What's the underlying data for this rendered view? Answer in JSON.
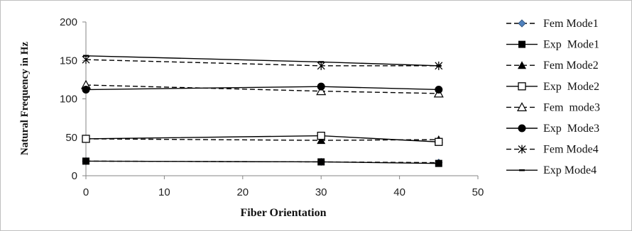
{
  "chart_data": {
    "type": "line",
    "title": "",
    "xlabel": "Fiber Orientation",
    "ylabel": "Natural Frequency in Hz",
    "xlim": [
      0,
      50
    ],
    "ylim": [
      0,
      200
    ],
    "x_ticks": [
      "0",
      "10",
      "20",
      "30",
      "40",
      "50"
    ],
    "y_ticks": [
      "0",
      "50",
      "100",
      "150",
      "200"
    ],
    "grid": false,
    "legend_position": "right",
    "x": [
      0,
      30,
      45
    ],
    "series": [
      {
        "name": "Fem Mode1",
        "values": [
          19,
          18,
          17
        ],
        "style": "dashed",
        "marker": "diamond",
        "color": "#4f81bd"
      },
      {
        "name": "Exp  Mode1",
        "values": [
          19,
          18,
          16
        ],
        "style": "solid",
        "marker": "square-filled",
        "color": "#000000"
      },
      {
        "name": "Fem Mode2",
        "values": [
          48,
          46,
          47
        ],
        "style": "dashed",
        "marker": "triangle-filled",
        "color": "#000000"
      },
      {
        "name": "Exp  Mode2",
        "values": [
          48,
          52,
          44
        ],
        "style": "solid",
        "marker": "square-open",
        "color": "#000000"
      },
      {
        "name": "Fem  mode3",
        "values": [
          118,
          110,
          107
        ],
        "style": "dashed",
        "marker": "triangle-open",
        "color": "#000000"
      },
      {
        "name": "Exp  Mode3",
        "values": [
          112,
          116,
          112
        ],
        "style": "solid",
        "marker": "circle-filled",
        "color": "#000000"
      },
      {
        "name": "Fem Mode4",
        "values": [
          151,
          143,
          143
        ],
        "style": "dashed",
        "marker": "star",
        "color": "#000000"
      },
      {
        "name": "Exp Mode4",
        "values": [
          156,
          148,
          143
        ],
        "style": "solid",
        "marker": "dash",
        "color": "#000000"
      }
    ]
  }
}
